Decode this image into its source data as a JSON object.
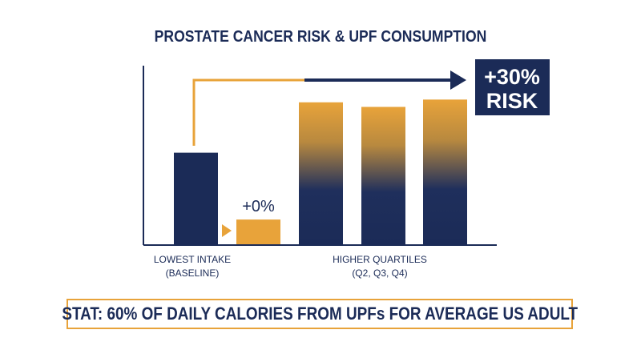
{
  "chart_data": {
    "type": "bar",
    "title": "PROSTATE CANCER RISK & UPF CONSUMPTION",
    "groups": [
      {
        "label_line1": "LOWEST INTAKE",
        "label_line2": "(BASELINE)"
      },
      {
        "label_line1": "HIGHER QUARTILES",
        "label_line2": "(Q2, Q3, Q4)"
      }
    ],
    "bars": [
      {
        "group": 0,
        "value": 1.0,
        "style": "navy"
      },
      {
        "group": 0,
        "value": 0.27,
        "style": "orange",
        "label": "+0%"
      },
      {
        "group": 1,
        "value": 1.55,
        "style": "gradient"
      },
      {
        "group": 1,
        "value": 1.5,
        "style": "gradient"
      },
      {
        "group": 1,
        "value": 1.58,
        "style": "gradient"
      }
    ],
    "callout": {
      "line1": "+30%",
      "line2": "RISK"
    },
    "ylim": [
      0,
      1.95
    ],
    "colors": {
      "navy": "#1b2b57",
      "orange": "#e8a33a",
      "axis": "#1b2b57"
    }
  },
  "stat": "STAT: 60% OF DAILY CALORIES FROM UPFs FOR AVERAGE US ADULT"
}
